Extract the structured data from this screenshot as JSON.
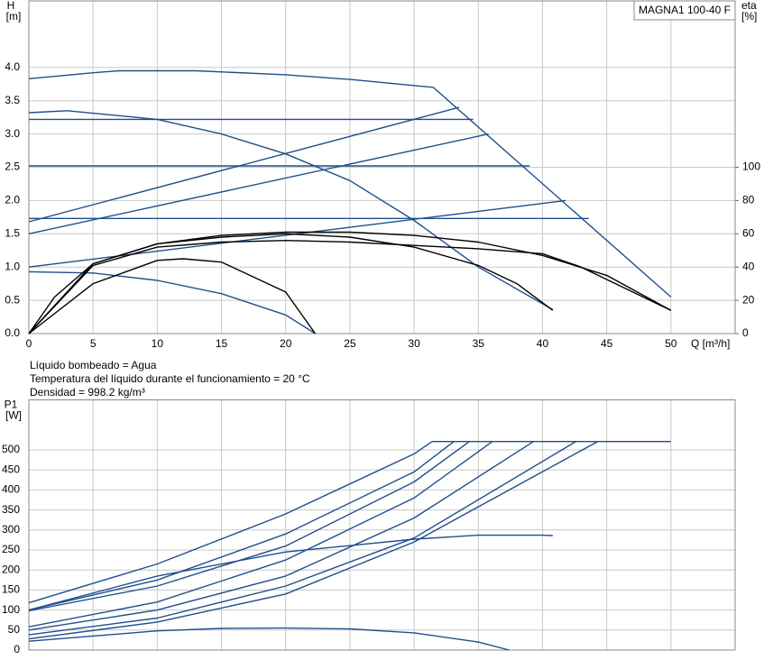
{
  "chart_data": [
    {
      "type": "line",
      "title": "MAGNA1 100-40 F",
      "ylabel": "H",
      "yunit": "[m]",
      "y2label": "eta",
      "y2unit": "[%]",
      "xlabel": "Q [m³/h]",
      "xlim": [
        0,
        55
      ],
      "xticks": [
        0,
        5,
        10,
        15,
        20,
        25,
        30,
        35,
        40,
        45,
        50
      ],
      "ylim": [
        0,
        5
      ],
      "yticks": [
        {
          "value": 0,
          "label": "0.0"
        },
        0.5,
        {
          "value": 1,
          "label": "1.0"
        },
        1.5,
        {
          "value": 2,
          "label": "2.0"
        },
        2.5,
        {
          "value": 3,
          "label": "3.0"
        },
        3.5,
        {
          "value": 4,
          "label": "4.0"
        }
      ],
      "y2lim": [
        0,
        200
      ],
      "y2ticks": [
        0,
        20,
        40,
        60,
        80,
        100
      ],
      "grid": true,
      "series": [
        {
          "color": "#1f4e8c",
          "x": [
            0,
            5,
            7,
            13,
            20,
            25,
            31.5,
            50
          ],
          "values": [
            3.83,
            3.92,
            3.95,
            3.95,
            3.89,
            3.82,
            3.7,
            0.55
          ]
        },
        {
          "color": "#1f4e8c",
          "x": [
            0,
            34.6
          ],
          "values": [
            3.22,
            3.22
          ]
        },
        {
          "color": "#1f4e8c",
          "x": [
            0,
            39
          ],
          "values": [
            2.52,
            2.52
          ]
        },
        {
          "color": "#1f4e8c",
          "x": [
            0,
            43.6
          ],
          "values": [
            1.73,
            1.73
          ]
        },
        {
          "color": "#1f4e8c",
          "x": [
            0,
            33.5
          ],
          "values": [
            1.68,
            3.4
          ]
        },
        {
          "color": "#1f4e8c",
          "x": [
            0,
            35.8
          ],
          "values": [
            1.5,
            3.0
          ]
        },
        {
          "color": "#1f4e8c",
          "x": [
            0,
            41.8
          ],
          "values": [
            1.0,
            2.0
          ]
        },
        {
          "color": "#1f4e8c",
          "x": [
            0,
            3,
            10,
            15,
            20,
            25,
            30,
            35,
            40.8
          ],
          "values": [
            3.32,
            3.35,
            3.22,
            3.0,
            2.7,
            2.3,
            1.7,
            1.0,
            0.36
          ]
        },
        {
          "color": "#1f4e8c",
          "x": [
            0,
            5,
            10,
            15,
            20,
            22.3
          ],
          "values": [
            0.93,
            0.91,
            0.8,
            0.6,
            0.28,
            0
          ]
        },
        {
          "color": "#000000",
          "axis": "y2",
          "x": [
            0,
            2,
            5,
            10,
            15,
            20,
            25,
            30,
            35,
            40,
            45,
            50
          ],
          "values": [
            0,
            22,
            42,
            54,
            59,
            61,
            61,
            59,
            55,
            47,
            35,
            14
          ]
        },
        {
          "color": "#000000",
          "axis": "y2",
          "x": [
            0,
            5,
            10,
            15,
            20,
            25,
            30,
            35,
            38,
            40.8
          ],
          "values": [
            0,
            42,
            54,
            58,
            60,
            58,
            52,
            41,
            30,
            14
          ]
        },
        {
          "color": "#000000",
          "axis": "y2",
          "x": [
            0,
            5,
            10,
            15,
            20,
            25,
            30,
            35,
            40,
            43,
            50
          ],
          "values": [
            0,
            41,
            52,
            55,
            56,
            55,
            53,
            51,
            48,
            40,
            14
          ]
        },
        {
          "color": "#000000",
          "axis": "y2",
          "x": [
            0,
            5,
            10,
            12,
            15,
            20,
            22.3
          ],
          "values": [
            0,
            30,
            44,
            45,
            43,
            25,
            0
          ]
        }
      ]
    },
    {
      "type": "line",
      "ylabel": "P1",
      "yunit": "[W]",
      "xlim": [
        0,
        55
      ],
      "xticks": [
        0,
        5,
        10,
        15,
        20,
        25,
        30,
        35,
        40,
        45,
        50
      ],
      "show_xtick_labels": false,
      "ylim": [
        0,
        625
      ],
      "yticks": [
        0,
        50,
        100,
        150,
        200,
        250,
        300,
        350,
        400,
        450,
        500
      ],
      "grid": true,
      "series": [
        {
          "color": "#1f4e8c",
          "x": [
            31.4,
            50
          ],
          "values": [
            521,
            521
          ]
        },
        {
          "color": "#1f4e8c",
          "x": [
            0,
            10,
            20,
            30,
            31.4
          ],
          "values": [
            118,
            215,
            340,
            490,
            521
          ]
        },
        {
          "color": "#1f4e8c",
          "x": [
            0,
            10,
            20,
            30,
            33.1
          ],
          "values": [
            100,
            175,
            290,
            445,
            521
          ]
        },
        {
          "color": "#1f4e8c",
          "x": [
            0,
            10,
            20,
            30,
            34.3
          ],
          "values": [
            98,
            160,
            260,
            420,
            521
          ]
        },
        {
          "color": "#1f4e8c",
          "x": [
            0,
            10,
            20,
            30,
            36.1
          ],
          "values": [
            58,
            120,
            225,
            380,
            521
          ]
        },
        {
          "color": "#1f4e8c",
          "x": [
            0,
            10,
            20,
            30,
            39.3
          ],
          "values": [
            50,
            100,
            185,
            330,
            521
          ]
        },
        {
          "color": "#1f4e8c",
          "x": [
            0,
            10,
            20,
            30,
            42.6
          ],
          "values": [
            38,
            80,
            160,
            280,
            521
          ]
        },
        {
          "color": "#1f4e8c",
          "x": [
            0,
            10,
            20,
            30,
            44.3
          ],
          "values": [
            28,
            70,
            140,
            270,
            521
          ]
        },
        {
          "color": "#1f4e8c",
          "x": [
            0,
            10,
            20,
            30,
            35,
            40,
            40.8
          ],
          "values": [
            100,
            185,
            245,
            277,
            287,
            287,
            286
          ]
        },
        {
          "color": "#1f4e8c",
          "x": [
            0,
            10,
            15,
            20,
            25,
            30,
            35,
            37.4
          ],
          "values": [
            22,
            48,
            54,
            55,
            53,
            43,
            20,
            0
          ]
        }
      ]
    }
  ],
  "notes": [
    "Líquido bombeado = Agua",
    "Temperatura del líquido durante el funcionamiento = 20 °C",
    "Densidad = 998.2 kg/m³"
  ]
}
